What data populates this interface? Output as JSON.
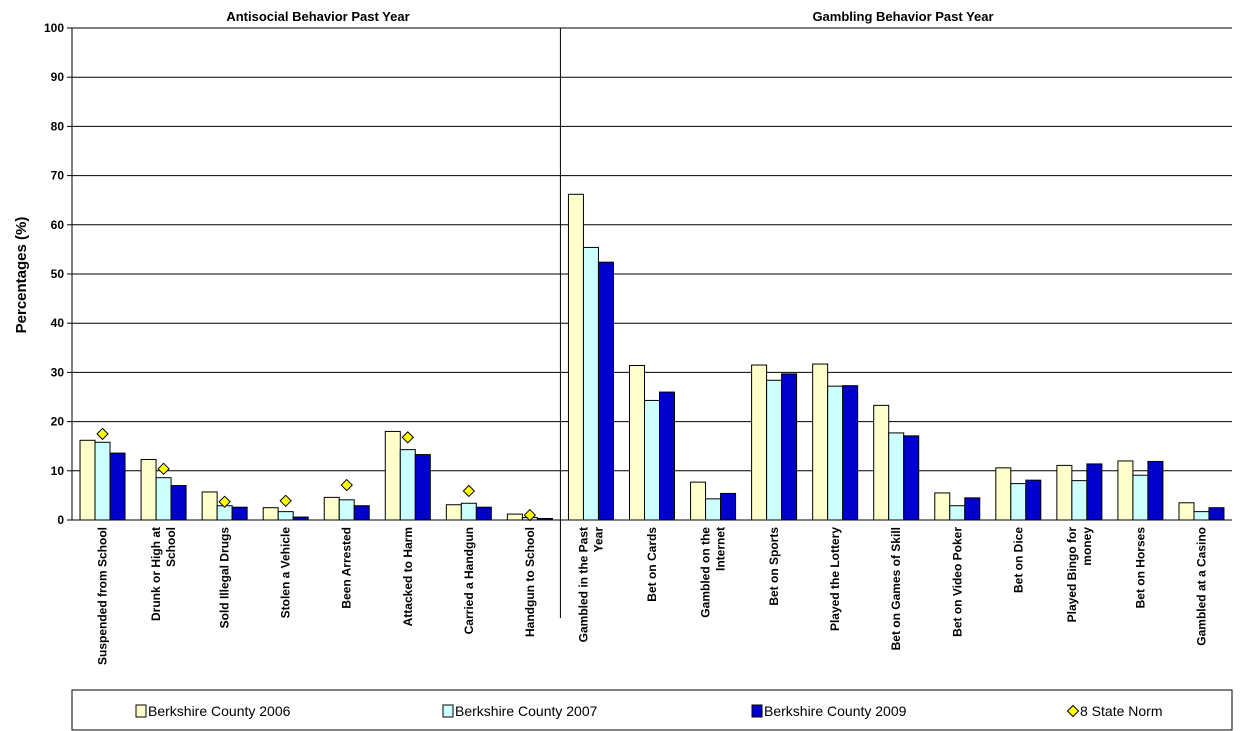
{
  "chart_data": {
    "type": "bar",
    "ylabel": "Percentages (%)",
    "ylim": [
      0,
      100
    ],
    "yticks": [
      0,
      10,
      20,
      30,
      40,
      50,
      60,
      70,
      80,
      90,
      100
    ],
    "grid": true,
    "legend_position": "bottom",
    "panels": [
      {
        "title": "Antisocial Behavior Past Year",
        "categories": [
          "Suspended from School",
          "Drunk or High at School",
          "Sold Illegal Drugs",
          "Stolen a Vehicle",
          "Been Arrested",
          "Attacked to Harm",
          "Carried a Handgun",
          "Handgun to School"
        ]
      },
      {
        "title": "Gambling Behavior Past Year",
        "categories": [
          "Gambled in the Past Year",
          "Bet on Cards",
          "Gambled on the Internet",
          "Bet on Sports",
          "Played the Lottery",
          "Bet on Games of Skill",
          "Bet on Video Poker",
          "Bet on Dice",
          "Played Bingo for money",
          "Bet on Horses",
          "Gambled at a Casino"
        ]
      }
    ],
    "categories": [
      "Suspended from School",
      "Drunk or High at School",
      "Sold Illegal Drugs",
      "Stolen a Vehicle",
      "Been Arrested",
      "Attacked to Harm",
      "Carried a Handgun",
      "Handgun to School",
      "Gambled in the Past Year",
      "Bet on Cards",
      "Gambled on the Internet",
      "Bet on Sports",
      "Played the Lottery",
      "Bet on Games of Skill",
      "Bet on Video Poker",
      "Bet on Dice",
      "Played Bingo for money",
      "Bet on Horses",
      "Gambled at a Casino"
    ],
    "series": [
      {
        "name": "Berkshire County 2006",
        "type": "bar",
        "color": "#ffffcc",
        "values": [
          16.2,
          12.3,
          5.7,
          2.5,
          4.6,
          18.0,
          3.1,
          1.2,
          66.2,
          31.4,
          7.7,
          31.5,
          31.7,
          23.3,
          5.5,
          10.6,
          11.1,
          12.0,
          3.5
        ]
      },
      {
        "name": "Berkshire County 2007",
        "type": "bar",
        "color": "#ccffff",
        "values": [
          15.8,
          8.6,
          2.9,
          1.7,
          4.1,
          14.3,
          3.4,
          0.5,
          55.4,
          24.3,
          4.3,
          28.4,
          27.2,
          17.7,
          2.9,
          7.4,
          8.0,
          9.1,
          1.7
        ]
      },
      {
        "name": "Berkshire County 2009",
        "type": "bar",
        "color": "#0000cc",
        "values": [
          13.6,
          7.0,
          2.6,
          0.6,
          2.9,
          13.3,
          2.6,
          0.3,
          52.4,
          26.0,
          5.4,
          29.7,
          27.3,
          17.1,
          4.5,
          8.1,
          11.4,
          11.9,
          2.5
        ]
      },
      {
        "name": "8 State Norm",
        "type": "marker",
        "color": "#ffff00",
        "values": [
          17.5,
          10.4,
          3.7,
          3.9,
          7.1,
          16.8,
          5.9,
          1.0,
          null,
          null,
          null,
          null,
          null,
          null,
          null,
          null,
          null,
          null,
          null
        ]
      }
    ]
  }
}
